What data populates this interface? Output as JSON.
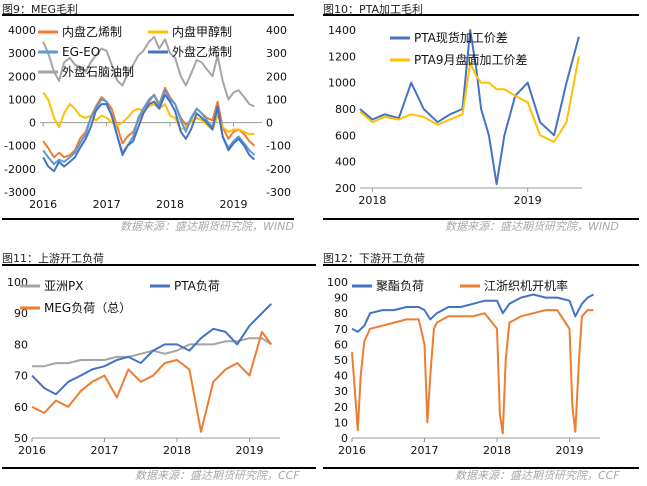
{
  "chart_data": [
    {
      "type": "line",
      "figure_label": "图9：MEG毛利",
      "title": "",
      "y_left": {
        "min": -3000,
        "max": 4000,
        "ticks": [
          -3000,
          -2000,
          -1000,
          0,
          1000,
          2000,
          3000,
          4000
        ]
      },
      "y_right": {
        "min": -300,
        "max": 400,
        "ticks": [
          -300,
          -200,
          -100,
          0,
          100,
          200,
          300,
          400
        ]
      },
      "x_ticks": [
        "2016",
        "2017",
        "2018",
        "2019"
      ],
      "x_range": [
        2015.95,
        2019.45
      ],
      "series": [
        {
          "name": "内盘乙烯制",
          "axis": "left",
          "color": "#ed7d31",
          "x": [
            2016.0,
            2016.08,
            2016.17,
            2016.25,
            2016.33,
            2016.42,
            2016.5,
            2016.58,
            2016.67,
            2016.75,
            2016.83,
            2016.92,
            2017.0,
            2017.08,
            2017.17,
            2017.25,
            2017.33,
            2017.42,
            2017.5,
            2017.58,
            2017.67,
            2017.75,
            2017.83,
            2017.92,
            2018.0,
            2018.08,
            2018.17,
            2018.25,
            2018.33,
            2018.42,
            2018.5,
            2018.58,
            2018.67,
            2018.75,
            2018.83,
            2018.92,
            2019.0,
            2019.08,
            2019.17,
            2019.25,
            2019.33
          ],
          "y": [
            -800,
            -1100,
            -1500,
            -1300,
            -1500,
            -1400,
            -1200,
            -700,
            -400,
            200,
            700,
            1100,
            900,
            600,
            -200,
            -900,
            -600,
            -400,
            100,
            600,
            900,
            1200,
            800,
            1500,
            1100,
            800,
            200,
            -100,
            100,
            600,
            400,
            200,
            100,
            900,
            -200,
            -700,
            -400,
            -300,
            -500,
            -800,
            -1000
          ]
        },
        {
          "name": "内盘甲醇制",
          "axis": "left",
          "color": "#ffc000",
          "x": [
            2016.0,
            2016.08,
            2016.17,
            2016.25,
            2016.33,
            2016.42,
            2016.5,
            2016.58,
            2016.67,
            2016.75,
            2016.83,
            2016.92,
            2017.0,
            2017.08,
            2017.17,
            2017.25,
            2017.33,
            2017.42,
            2017.5,
            2017.58,
            2017.67,
            2017.75,
            2017.83,
            2017.92,
            2018.0,
            2018.08,
            2018.17,
            2018.25,
            2018.33,
            2018.42,
            2018.5,
            2018.58,
            2018.67,
            2018.75,
            2018.83,
            2018.92,
            2019.0,
            2019.08,
            2019.17,
            2019.25,
            2019.33
          ],
          "y": [
            1300,
            1000,
            200,
            -200,
            400,
            800,
            600,
            300,
            200,
            300,
            100,
            300,
            200,
            0,
            -100,
            0,
            200,
            500,
            600,
            500,
            700,
            800,
            600,
            800,
            300,
            200,
            -300,
            -200,
            0,
            200,
            100,
            -100,
            -300,
            300,
            -200,
            -400,
            -300,
            -300,
            -400,
            -500,
            -500
          ]
        },
        {
          "name": "EG-EO",
          "axis": "right",
          "color": "#5b9bd5",
          "x": [
            2016.0,
            2016.08,
            2016.17,
            2016.25,
            2016.33,
            2016.42,
            2016.5,
            2016.58,
            2016.67,
            2016.75,
            2016.83,
            2016.92,
            2017.0,
            2017.08,
            2017.17,
            2017.25,
            2017.33,
            2017.42,
            2017.5,
            2017.58,
            2017.67,
            2017.75,
            2017.83,
            2017.92,
            2018.0,
            2018.08,
            2018.17,
            2018.25,
            2018.33,
            2018.42,
            2018.5,
            2018.58,
            2018.67,
            2018.75,
            2018.83,
            2018.92,
            2019.0,
            2019.08,
            2019.17,
            2019.25,
            2019.33
          ],
          "y": [
            -120,
            -150,
            -180,
            -160,
            -170,
            -150,
            -130,
            -90,
            -50,
            20,
            60,
            100,
            90,
            30,
            -60,
            -130,
            -100,
            -60,
            20,
            60,
            100,
            120,
            70,
            140,
            100,
            80,
            10,
            -40,
            20,
            60,
            40,
            10,
            -20,
            60,
            -60,
            -110,
            -80,
            -60,
            -90,
            -120,
            -140
          ]
        },
        {
          "name": "外盘乙烯制",
          "axis": "left",
          "color": "#4472c4",
          "x": [
            2016.0,
            2016.08,
            2016.17,
            2016.25,
            2016.33,
            2016.42,
            2016.5,
            2016.58,
            2016.67,
            2016.75,
            2016.83,
            2016.92,
            2017.0,
            2017.08,
            2017.17,
            2017.25,
            2017.33,
            2017.42,
            2017.5,
            2017.58,
            2017.67,
            2017.75,
            2017.83,
            2017.92,
            2018.0,
            2018.08,
            2018.17,
            2018.25,
            2018.33,
            2018.42,
            2018.5,
            2018.58,
            2018.67,
            2018.75,
            2018.83,
            2018.92,
            2019.0,
            2019.08,
            2019.17,
            2019.25,
            2019.33
          ],
          "y": [
            -1500,
            -1900,
            -2100,
            -1700,
            -1900,
            -1700,
            -1500,
            -1100,
            -700,
            -200,
            500,
            800,
            800,
            300,
            -600,
            -1400,
            -1000,
            -800,
            -200,
            400,
            800,
            900,
            600,
            1200,
            900,
            500,
            -400,
            -700,
            -300,
            400,
            200,
            0,
            -300,
            700,
            -600,
            -1200,
            -900,
            -700,
            -1000,
            -1400,
            -1600
          ]
        },
        {
          "name": "外盘石脑油制",
          "axis": "left",
          "color": "#a5a5a5",
          "x": [
            2016.0,
            2016.08,
            2016.17,
            2016.25,
            2016.33,
            2016.42,
            2016.5,
            2016.58,
            2016.67,
            2016.75,
            2016.83,
            2016.92,
            2017.0,
            2017.08,
            2017.17,
            2017.25,
            2017.33,
            2017.42,
            2017.5,
            2017.58,
            2017.67,
            2017.75,
            2017.83,
            2017.92,
            2018.0,
            2018.08,
            2018.17,
            2018.25,
            2018.33,
            2018.42,
            2018.5,
            2018.58,
            2018.67,
            2018.75,
            2018.83,
            2018.92,
            2019.0,
            2019.08,
            2019.17,
            2019.25,
            2019.33
          ],
          "y": [
            3500,
            3000,
            2200,
            1800,
            2600,
            2800,
            2500,
            2400,
            2200,
            2600,
            2900,
            3200,
            3100,
            2500,
            1800,
            1600,
            2100,
            2500,
            2900,
            3100,
            3500,
            3700,
            3200,
            3600,
            3000,
            2800,
            2000,
            1600,
            2100,
            2700,
            2600,
            2300,
            2000,
            2900,
            1800,
            1000,
            1300,
            1400,
            1100,
            800,
            700
          ]
        }
      ]
    },
    {
      "type": "line",
      "figure_label": "图10：PTA加工毛利",
      "title": "",
      "y": {
        "min": 200,
        "max": 1400,
        "ticks": [
          200,
          400,
          600,
          800,
          1000,
          1200,
          1400
        ]
      },
      "x_ticks": [
        "2018",
        "2019"
      ],
      "x_range": [
        2017.92,
        2019.35
      ],
      "series": [
        {
          "name": "PTA现货加工价差",
          "color": "#4472c4",
          "x": [
            2017.92,
            2018.0,
            2018.08,
            2018.17,
            2018.25,
            2018.33,
            2018.42,
            2018.5,
            2018.58,
            2018.63,
            2018.67,
            2018.7,
            2018.75,
            2018.8,
            2018.85,
            2018.92,
            2019.0,
            2019.08,
            2019.17,
            2019.25,
            2019.33
          ],
          "y": [
            800,
            720,
            760,
            730,
            1000,
            800,
            700,
            760,
            800,
            1400,
            1100,
            800,
            600,
            230,
            600,
            900,
            1000,
            700,
            600,
            1000,
            1350
          ]
        },
        {
          "name": "PTA9月盘面加工价差",
          "color": "#ffc000",
          "x": [
            2017.92,
            2018.0,
            2018.08,
            2018.17,
            2018.25,
            2018.33,
            2018.42,
            2018.5,
            2018.58,
            2018.63,
            2018.67,
            2018.7,
            2018.75,
            2018.8,
            2018.85,
            2018.92,
            2019.0,
            2019.08,
            2019.17,
            2019.25,
            2019.33
          ],
          "y": [
            780,
            700,
            740,
            720,
            760,
            740,
            680,
            720,
            760,
            1150,
            1050,
            1000,
            1000,
            950,
            950,
            900,
            850,
            600,
            550,
            700,
            1200
          ]
        }
      ]
    },
    {
      "type": "line",
      "figure_label": "图11：上游开工负荷",
      "title": "",
      "y": {
        "min": 50,
        "max": 100,
        "ticks": [
          50,
          60,
          70,
          80,
          90,
          100
        ]
      },
      "x_ticks": [
        "2016",
        "2017",
        "2018",
        "2019"
      ],
      "x_range": [
        2016.0,
        2019.42
      ],
      "series": [
        {
          "name": "亚洲PX",
          "color": "#a5a5a5",
          "x": [
            2016.0,
            2016.17,
            2016.33,
            2016.5,
            2016.67,
            2016.83,
            2017.0,
            2017.17,
            2017.33,
            2017.5,
            2017.67,
            2017.83,
            2018.0,
            2018.17,
            2018.33,
            2018.5,
            2018.67,
            2018.83,
            2019.0,
            2019.17,
            2019.3
          ],
          "y": [
            73,
            73,
            74,
            74,
            75,
            75,
            75,
            76,
            76,
            77,
            78,
            77,
            78,
            80,
            80,
            80,
            81,
            81,
            82,
            82,
            80
          ]
        },
        {
          "name": "PTA负荷",
          "color": "#4472c4",
          "x": [
            2016.0,
            2016.17,
            2016.33,
            2016.5,
            2016.67,
            2016.83,
            2017.0,
            2017.17,
            2017.33,
            2017.5,
            2017.67,
            2017.83,
            2018.0,
            2018.17,
            2018.33,
            2018.5,
            2018.67,
            2018.83,
            2019.0,
            2019.17,
            2019.3
          ],
          "y": [
            70,
            66,
            64,
            68,
            70,
            72,
            73,
            75,
            76,
            74,
            78,
            80,
            80,
            78,
            82,
            85,
            84,
            80,
            86,
            90,
            93
          ]
        },
        {
          "name": "MEG负荷（总）",
          "color": "#ed7d31",
          "x": [
            2016.0,
            2016.17,
            2016.33,
            2016.5,
            2016.67,
            2016.83,
            2017.0,
            2017.17,
            2017.33,
            2017.5,
            2017.67,
            2017.83,
            2018.0,
            2018.17,
            2018.33,
            2018.5,
            2018.67,
            2018.83,
            2019.0,
            2019.17,
            2019.3
          ],
          "y": [
            60,
            58,
            62,
            60,
            65,
            68,
            70,
            63,
            72,
            68,
            70,
            74,
            75,
            72,
            52,
            68,
            72,
            74,
            70,
            84,
            80
          ]
        }
      ]
    },
    {
      "type": "line",
      "figure_label": "图12：下游开工负荷",
      "title": "",
      "y": {
        "min": 0,
        "max": 100,
        "ticks": [
          0,
          10,
          20,
          30,
          40,
          50,
          60,
          70,
          80,
          90,
          100
        ]
      },
      "x_ticks": [
        "2016",
        "2017",
        "2018",
        "2019"
      ],
      "x_range": [
        2016.0,
        2019.42
      ],
      "series": [
        {
          "name": "聚酯负荷",
          "color": "#4472c4",
          "x": [
            2016.0,
            2016.08,
            2016.17,
            2016.25,
            2016.42,
            2016.58,
            2016.75,
            2016.92,
            2017.0,
            2017.08,
            2017.17,
            2017.33,
            2017.5,
            2017.67,
            2017.83,
            2018.0,
            2018.08,
            2018.17,
            2018.33,
            2018.5,
            2018.67,
            2018.83,
            2019.0,
            2019.08,
            2019.17,
            2019.25,
            2019.33
          ],
          "y": [
            70,
            68,
            72,
            80,
            82,
            82,
            84,
            84,
            82,
            76,
            80,
            84,
            84,
            86,
            88,
            88,
            80,
            86,
            90,
            92,
            90,
            90,
            88,
            78,
            86,
            90,
            92
          ]
        },
        {
          "name": "江浙织机开机率",
          "color": "#ed7d31",
          "x": [
            2016.0,
            2016.04,
            2016.08,
            2016.12,
            2016.17,
            2016.25,
            2016.42,
            2016.58,
            2016.75,
            2016.92,
            2017.0,
            2017.04,
            2017.08,
            2017.13,
            2017.17,
            2017.33,
            2017.5,
            2017.67,
            2017.83,
            2018.0,
            2018.04,
            2018.08,
            2018.12,
            2018.17,
            2018.33,
            2018.5,
            2018.67,
            2018.83,
            2019.0,
            2019.04,
            2019.08,
            2019.13,
            2019.17,
            2019.25,
            2019.33
          ],
          "y": [
            55,
            30,
            5,
            40,
            62,
            70,
            72,
            74,
            76,
            76,
            60,
            10,
            40,
            70,
            74,
            78,
            78,
            78,
            80,
            70,
            15,
            3,
            50,
            74,
            78,
            80,
            82,
            82,
            70,
            20,
            4,
            50,
            78,
            82,
            82
          ]
        }
      ]
    }
  ],
  "panels": {
    "fig9": {
      "title": "图9：MEG毛利",
      "source": "数据来源：盛达期货研究院，WIND",
      "legend": [
        "内盘乙烯制",
        "内盘甲醇制",
        "EG-EO",
        "外盘乙烯制",
        "外盘石脑油制"
      ]
    },
    "fig10": {
      "title": "图10：PTA加工毛利",
      "source": "数据来源：盛达期货研究院，WIND",
      "legend": [
        "PTA现货加工价差",
        "PTA9月盘面加工价差"
      ]
    },
    "fig11": {
      "title": "图11：上游开工负荷",
      "source": "数据来源：盛达期货研究院，CCF",
      "legend": [
        "亚洲PX",
        "PTA负荷",
        "MEG负荷（总）"
      ]
    },
    "fig12": {
      "title": "图12：下游开工负荷",
      "source": "数据来源：盛达期货研究院，CCF",
      "legend": [
        "聚酯负荷",
        "江浙织机开机率"
      ]
    }
  }
}
